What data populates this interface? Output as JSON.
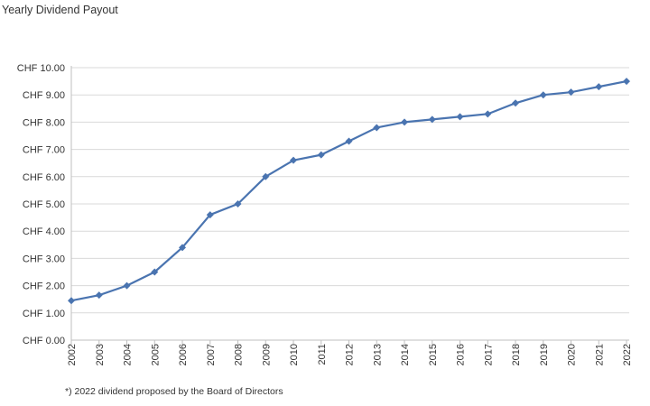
{
  "chart_data": {
    "type": "line",
    "title": "Yearly Dividend Payout",
    "footnote": "*) 2022 dividend proposed by the Board of Directors",
    "categories": [
      "2002",
      "2003",
      "2004",
      "2005",
      "2006",
      "2007",
      "2008",
      "2009",
      "2010",
      "2011",
      "2012",
      "2013",
      "2014",
      "2015",
      "2016",
      "2017",
      "2018",
      "2019",
      "2020",
      "2021",
      "2022"
    ],
    "series": [
      {
        "values": [
          1.45,
          1.65,
          2.0,
          2.5,
          3.4,
          4.6,
          5.0,
          6.0,
          6.6,
          6.8,
          7.3,
          7.8,
          8.0,
          8.1,
          8.2,
          8.3,
          8.7,
          9.0,
          9.1,
          9.3,
          9.5
        ]
      }
    ],
    "yticks": [
      "CHF 0.00",
      "CHF 1.00",
      "CHF 2.00",
      "CHF 3.00",
      "CHF 4.00",
      "CHF 5.00",
      "CHF 6.00",
      "CHF 7.00",
      "CHF 8.00",
      "CHF 9.00",
      "CHF 10.00"
    ],
    "ylim": [
      0,
      10
    ],
    "grid": true,
    "marker": "diamond",
    "color": "#4a74b0",
    "grid_color": "#d9d9d9"
  }
}
